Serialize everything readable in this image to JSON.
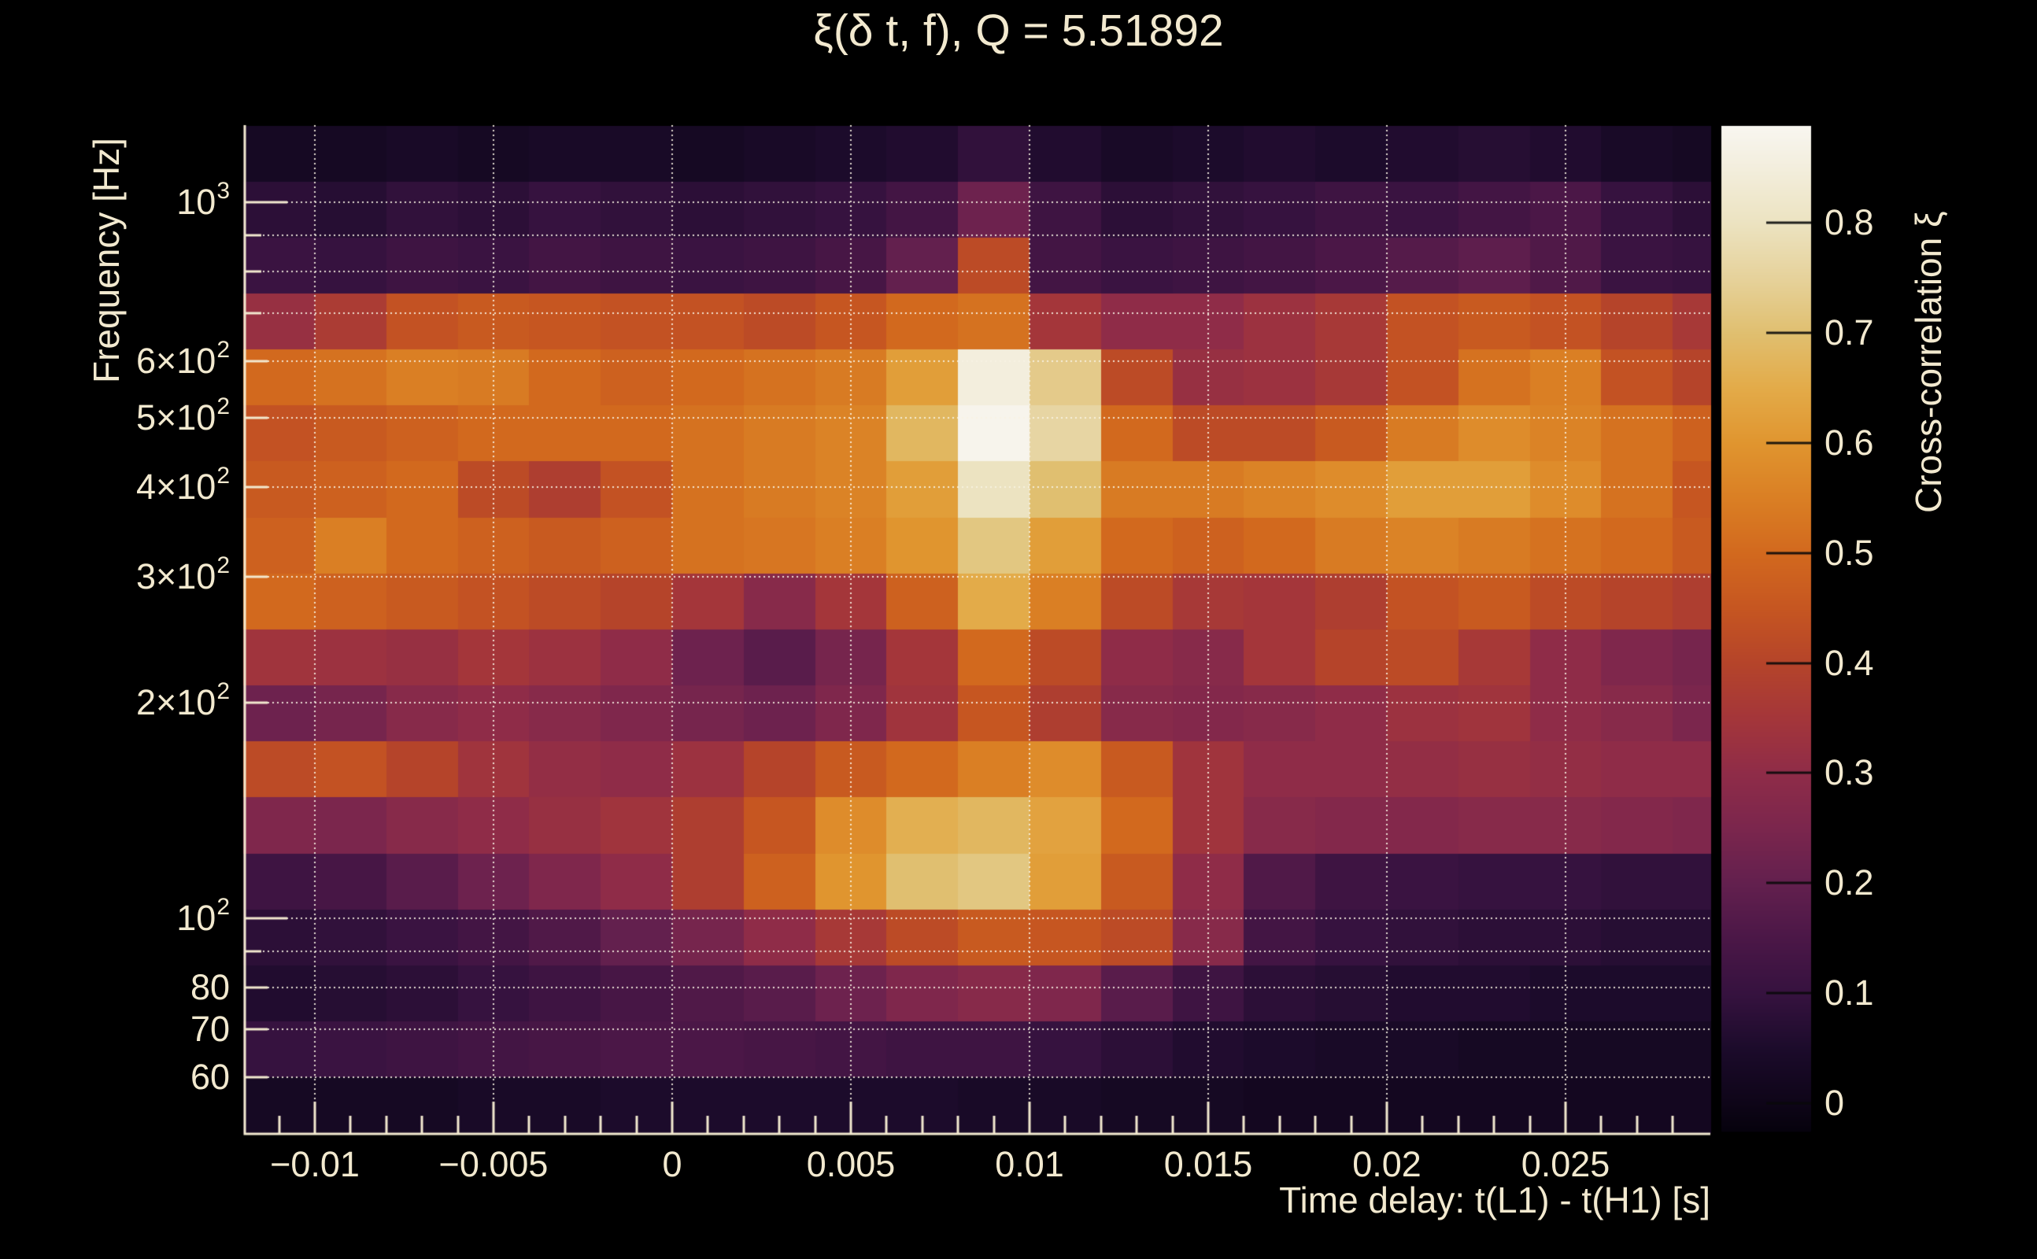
{
  "figure": {
    "background_color": "#000000",
    "text_color": "#f2e9cf",
    "q_value_shown": "5.51892"
  },
  "chart_data": {
    "type": "heatmap",
    "title": "ξ(δ t, f), Q = 5.51892",
    "xlabel": "Time delay: t(L1) - t(H1) [s]",
    "ylabel": "Frequency [Hz]",
    "colorbar_label": "Cross-correlation ξ",
    "x_range_s": [
      -0.012,
      0.02905
    ],
    "y_range_hz": [
      50.1,
      1279.6
    ],
    "y_scale": "log",
    "z_range": [
      -0.025,
      0.888
    ],
    "grid_on": true,
    "legend_position": "right-colorbar",
    "x_major_ticks": [
      {
        "v": -0.01,
        "label": "−0.01"
      },
      {
        "v": -0.005,
        "label": "−0.005"
      },
      {
        "v": 0,
        "label": "0"
      },
      {
        "v": 0.005,
        "label": "0.005"
      },
      {
        "v": 0.01,
        "label": "0.01"
      },
      {
        "v": 0.015,
        "label": "0.015"
      },
      {
        "v": 0.02,
        "label": "0.02"
      },
      {
        "v": 0.025,
        "label": "0.025"
      }
    ],
    "x_minor_tick_step_s": 0.001,
    "y_ticks": [
      {
        "v": 1000,
        "base": "10",
        "sup": "3",
        "major": true
      },
      {
        "v": 600,
        "base": "6×10",
        "sup": "2"
      },
      {
        "v": 500,
        "base": "5×10",
        "sup": "2"
      },
      {
        "v": 400,
        "base": "4×10",
        "sup": "2"
      },
      {
        "v": 300,
        "base": "3×10",
        "sup": "2"
      },
      {
        "v": 200,
        "base": "2×10",
        "sup": "2"
      },
      {
        "v": 100,
        "base": "10",
        "sup": "2",
        "major": true
      },
      {
        "v": 80,
        "base": "80"
      },
      {
        "v": 70,
        "base": "70"
      },
      {
        "v": 60,
        "base": "60"
      }
    ],
    "y_unlabeled_ticks": [
      900,
      800,
      700,
      90
    ],
    "grid_y_values": [
      1000,
      900,
      800,
      700,
      600,
      500,
      400,
      300,
      200,
      100,
      90,
      80,
      70,
      60
    ],
    "colorbar_ticks": [
      {
        "v": 0.8,
        "label": "0.8"
      },
      {
        "v": 0.7,
        "label": "0.7"
      },
      {
        "v": 0.6,
        "label": "0.6"
      },
      {
        "v": 0.5,
        "label": "0.5"
      },
      {
        "v": 0.4,
        "label": "0.4"
      },
      {
        "v": 0.3,
        "label": "0.3"
      },
      {
        "v": 0.2,
        "label": "0.2"
      },
      {
        "v": 0.1,
        "label": "0.1"
      },
      {
        "v": 0,
        "label": "0"
      }
    ],
    "colormap_anchors": [
      [
        -0.025,
        "#06020d"
      ],
      [
        0.0,
        "#0e0518"
      ],
      [
        0.05,
        "#1c0b2b"
      ],
      [
        0.1,
        "#36123f"
      ],
      [
        0.15,
        "#4b1747"
      ],
      [
        0.2,
        "#63204e"
      ],
      [
        0.25,
        "#7b264d"
      ],
      [
        0.3,
        "#8f2c48"
      ],
      [
        0.35,
        "#a4363a"
      ],
      [
        0.4,
        "#b5442a"
      ],
      [
        0.45,
        "#c65621"
      ],
      [
        0.5,
        "#d2691e"
      ],
      [
        0.55,
        "#da7f24"
      ],
      [
        0.6,
        "#e0952f"
      ],
      [
        0.65,
        "#e3ab49"
      ],
      [
        0.7,
        "#e0bf70"
      ],
      [
        0.75,
        "#e6d29b"
      ],
      [
        0.8,
        "#ece3c1"
      ],
      [
        0.85,
        "#f3eedd"
      ],
      [
        0.888,
        "#f8f6f0"
      ]
    ],
    "heatmap": {
      "t_edges_ms": [
        -12,
        -10,
        -8,
        -6,
        -4,
        -2,
        0,
        2,
        4,
        6,
        8,
        10,
        12,
        14,
        16,
        18,
        20,
        22,
        24,
        26,
        28,
        29.05
      ],
      "f_edges_hz": [
        1279.6,
        1068.8,
        892.7,
        745.7,
        622.8,
        520.2,
        434.5,
        362.9,
        303.1,
        253.2,
        211.5,
        176.6,
        147.5,
        123.2,
        102.9,
        86.0,
        71.8,
        60.0,
        50.1
      ],
      "values": [
        [
          0.03,
          0.03,
          0.04,
          0.03,
          0.04,
          0.04,
          0.03,
          0.04,
          0.05,
          0.06,
          0.09,
          0.06,
          0.04,
          0.05,
          0.06,
          0.05,
          0.06,
          0.07,
          0.06,
          0.04,
          0.03
        ],
        [
          0.08,
          0.07,
          0.09,
          0.08,
          0.1,
          0.09,
          0.08,
          0.09,
          0.1,
          0.13,
          0.22,
          0.12,
          0.08,
          0.09,
          0.1,
          0.12,
          0.11,
          0.13,
          0.15,
          0.1,
          0.08
        ],
        [
          0.11,
          0.1,
          0.12,
          0.11,
          0.13,
          0.12,
          0.11,
          0.12,
          0.14,
          0.2,
          0.42,
          0.13,
          0.11,
          0.12,
          0.13,
          0.15,
          0.17,
          0.19,
          0.16,
          0.11,
          0.1
        ],
        [
          0.32,
          0.37,
          0.44,
          0.46,
          0.45,
          0.44,
          0.44,
          0.42,
          0.45,
          0.5,
          0.52,
          0.35,
          0.3,
          0.3,
          0.33,
          0.36,
          0.44,
          0.46,
          0.44,
          0.4,
          0.36
        ],
        [
          0.5,
          0.52,
          0.55,
          0.54,
          0.5,
          0.48,
          0.5,
          0.52,
          0.54,
          0.62,
          0.85,
          0.73,
          0.42,
          0.32,
          0.33,
          0.36,
          0.44,
          0.52,
          0.55,
          0.44,
          0.4
        ],
        [
          0.44,
          0.46,
          0.48,
          0.5,
          0.5,
          0.5,
          0.52,
          0.54,
          0.56,
          0.68,
          0.88,
          0.76,
          0.5,
          0.42,
          0.42,
          0.46,
          0.54,
          0.58,
          0.56,
          0.52,
          0.48
        ],
        [
          0.46,
          0.48,
          0.5,
          0.42,
          0.38,
          0.44,
          0.52,
          0.54,
          0.56,
          0.62,
          0.8,
          0.7,
          0.54,
          0.54,
          0.56,
          0.58,
          0.62,
          0.62,
          0.58,
          0.52,
          0.45
        ],
        [
          0.48,
          0.55,
          0.5,
          0.48,
          0.46,
          0.48,
          0.52,
          0.53,
          0.55,
          0.6,
          0.72,
          0.62,
          0.5,
          0.48,
          0.5,
          0.54,
          0.56,
          0.54,
          0.52,
          0.5,
          0.46
        ],
        [
          0.5,
          0.48,
          0.46,
          0.44,
          0.42,
          0.4,
          0.35,
          0.28,
          0.35,
          0.48,
          0.65,
          0.55,
          0.42,
          0.36,
          0.35,
          0.38,
          0.44,
          0.46,
          0.42,
          0.4,
          0.38
        ],
        [
          0.34,
          0.33,
          0.32,
          0.35,
          0.33,
          0.3,
          0.22,
          0.18,
          0.24,
          0.35,
          0.5,
          0.42,
          0.3,
          0.28,
          0.35,
          0.4,
          0.42,
          0.36,
          0.3,
          0.26,
          0.24
        ],
        [
          0.22,
          0.24,
          0.28,
          0.3,
          0.28,
          0.26,
          0.24,
          0.22,
          0.26,
          0.34,
          0.45,
          0.38,
          0.28,
          0.27,
          0.28,
          0.3,
          0.33,
          0.34,
          0.3,
          0.28,
          0.25
        ],
        [
          0.42,
          0.44,
          0.4,
          0.34,
          0.31,
          0.3,
          0.33,
          0.4,
          0.46,
          0.5,
          0.55,
          0.58,
          0.46,
          0.34,
          0.3,
          0.3,
          0.31,
          0.32,
          0.31,
          0.3,
          0.3
        ],
        [
          0.26,
          0.25,
          0.28,
          0.3,
          0.32,
          0.34,
          0.38,
          0.45,
          0.58,
          0.66,
          0.68,
          0.63,
          0.5,
          0.34,
          0.28,
          0.27,
          0.27,
          0.28,
          0.28,
          0.27,
          0.26
        ],
        [
          0.12,
          0.14,
          0.18,
          0.22,
          0.26,
          0.3,
          0.38,
          0.48,
          0.6,
          0.7,
          0.72,
          0.62,
          0.46,
          0.3,
          0.16,
          0.12,
          0.11,
          0.1,
          0.1,
          0.09,
          0.09
        ],
        [
          0.08,
          0.09,
          0.11,
          0.13,
          0.16,
          0.2,
          0.24,
          0.3,
          0.36,
          0.42,
          0.46,
          0.45,
          0.42,
          0.28,
          0.13,
          0.1,
          0.09,
          0.08,
          0.08,
          0.07,
          0.07
        ],
        [
          0.06,
          0.07,
          0.08,
          0.1,
          0.12,
          0.14,
          0.16,
          0.18,
          0.22,
          0.26,
          0.28,
          0.26,
          0.18,
          0.12,
          0.08,
          0.07,
          0.06,
          0.06,
          0.05,
          0.05,
          0.05
        ],
        [
          0.1,
          0.11,
          0.12,
          0.13,
          0.14,
          0.15,
          0.15,
          0.14,
          0.13,
          0.12,
          0.12,
          0.1,
          0.08,
          0.06,
          0.05,
          0.04,
          0.04,
          0.03,
          0.03,
          0.03,
          0.03
        ],
        [
          0.03,
          0.03,
          0.03,
          0.04,
          0.04,
          0.05,
          0.05,
          0.05,
          0.05,
          0.05,
          0.04,
          0.04,
          0.03,
          0.03,
          0.02,
          0.02,
          0.02,
          0.02,
          0.02,
          0.02,
          0.02
        ]
      ]
    }
  }
}
